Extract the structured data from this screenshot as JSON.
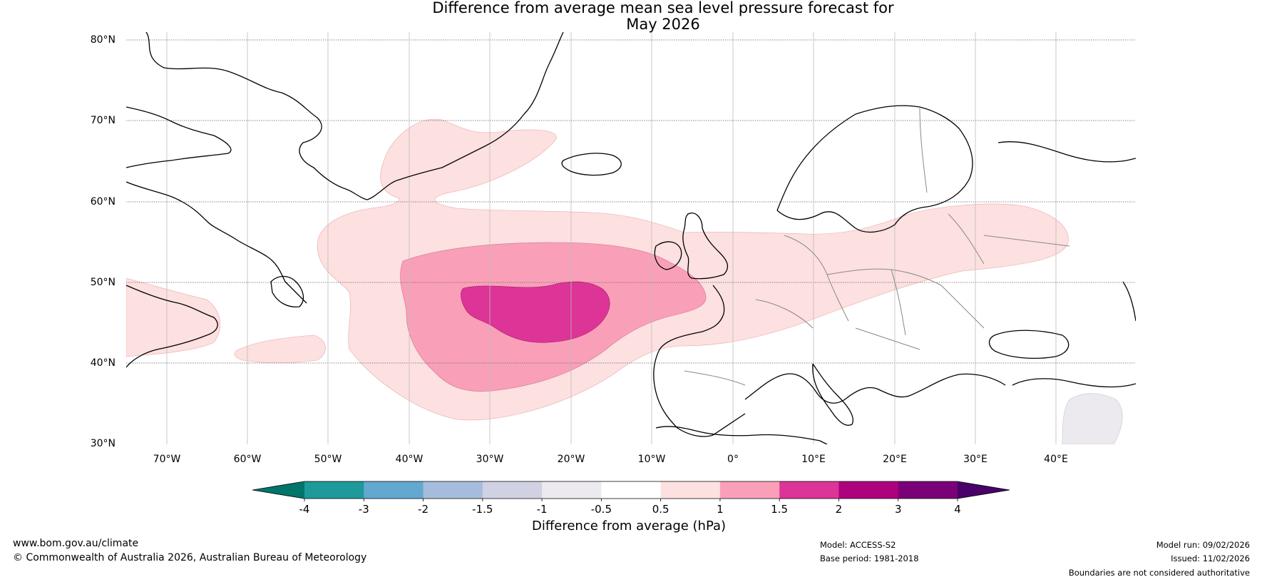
{
  "title_line1": "Difference from average mean sea level pressure forecast for",
  "title_line2": "May 2026",
  "lat_labels": [
    "80°N",
    "70°N",
    "60°N",
    "50°N",
    "40°N",
    "30°N"
  ],
  "lon_labels": [
    "70°W",
    "60°W",
    "50°W",
    "40°W",
    "30°W",
    "20°W",
    "10°W",
    "0°",
    "10°E",
    "20°E",
    "30°E",
    "40°E"
  ],
  "colorbar": {
    "title": "Difference from average (hPa)",
    "bins": [
      {
        "label": "-4",
        "color": "#1a8c8c"
      },
      {
        "label": "-3",
        "color": "#1f9999"
      },
      {
        "label": "-2",
        "color": "#63a8d0"
      },
      {
        "label": "-1.5",
        "color": "#a6bcdc"
      },
      {
        "label": "-1",
        "color": "#d1d1e4"
      },
      {
        "label": "-0.5",
        "color": "#eceaee"
      },
      {
        "label": "0.5",
        "color": "#ffffff"
      },
      {
        "label": "1",
        "color": "#fde0e0"
      },
      {
        "label": "1.5",
        "color": "#f9a0b8"
      },
      {
        "label": "2",
        "color": "#dd3497"
      },
      {
        "label": "3",
        "color": "#ae017e"
      },
      {
        "label": "4",
        "color": "#7a0177"
      }
    ],
    "under_color": "#00756a",
    "over_color": "#49006a"
  },
  "footer": {
    "website": "www.bom.gov.au/climate",
    "copyright": "© Commonwealth of Australia 2026, Australian Bureau of Meteorology",
    "model": "Model: ACCESS-S2",
    "base_period": "Base period: 1981-2018",
    "model_run": "Model run: 09/02/2026",
    "issued": "Issued: 11/02/2026",
    "disclaimer": "Boundaries are not considered authoritative"
  },
  "anomaly_levels": [
    "0.5 to 1 hPa",
    "1 to 1.5 hPa",
    "1.5 to 2 hPa",
    "-1 to -0.5 hPa"
  ]
}
